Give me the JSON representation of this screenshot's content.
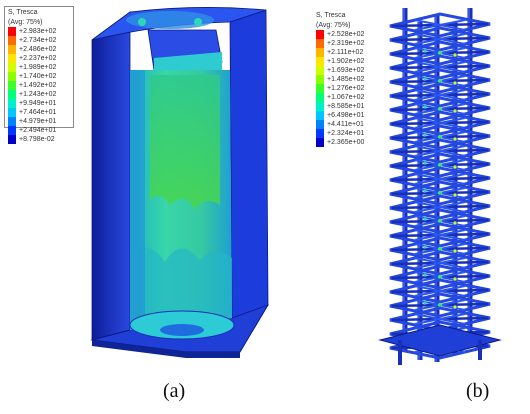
{
  "panel_a": {
    "caption": "(a)",
    "legend": {
      "title": "S, Tresca",
      "subtitle": "(Avg: 75%)",
      "entries": [
        "+2.983e+02",
        "+2.734e+02",
        "+2.486e+02",
        "+2.237e+02",
        "+1.989e+02",
        "+1.740e+02",
        "+1.492e+02",
        "+1.243e+02",
        "+9.949e+01",
        "+7.464e+01",
        "+4.979e+01",
        "+2.494e+01",
        "+8.798e-02"
      ]
    }
  },
  "panel_b": {
    "caption": "(b)",
    "legend": {
      "title": "S, Tresca",
      "subtitle": "(Avg: 75%)",
      "entries": [
        "+2.528e+02",
        "+2.319e+02",
        "+2.111e+02",
        "+1.902e+02",
        "+1.693e+02",
        "+1.485e+02",
        "+1.276e+02",
        "+1.067e+02",
        "+8.585e+01",
        "+6.498e+01",
        "+4.411e+01",
        "+2.324e+01",
        "+2.365e+00"
      ]
    }
  },
  "colors": {
    "scale": [
      "#ff0000",
      "#ff6a00",
      "#ffb400",
      "#ffe600",
      "#d2ff00",
      "#8aff00",
      "#3cff2a",
      "#00ff7a",
      "#00f0c8",
      "#00c8ff",
      "#0082ff",
      "#0038ff",
      "#0000c8"
    ],
    "model_dark": "#1a2fb8",
    "model_mid": "#2e52e8",
    "model_inner": "#39c7b0"
  }
}
